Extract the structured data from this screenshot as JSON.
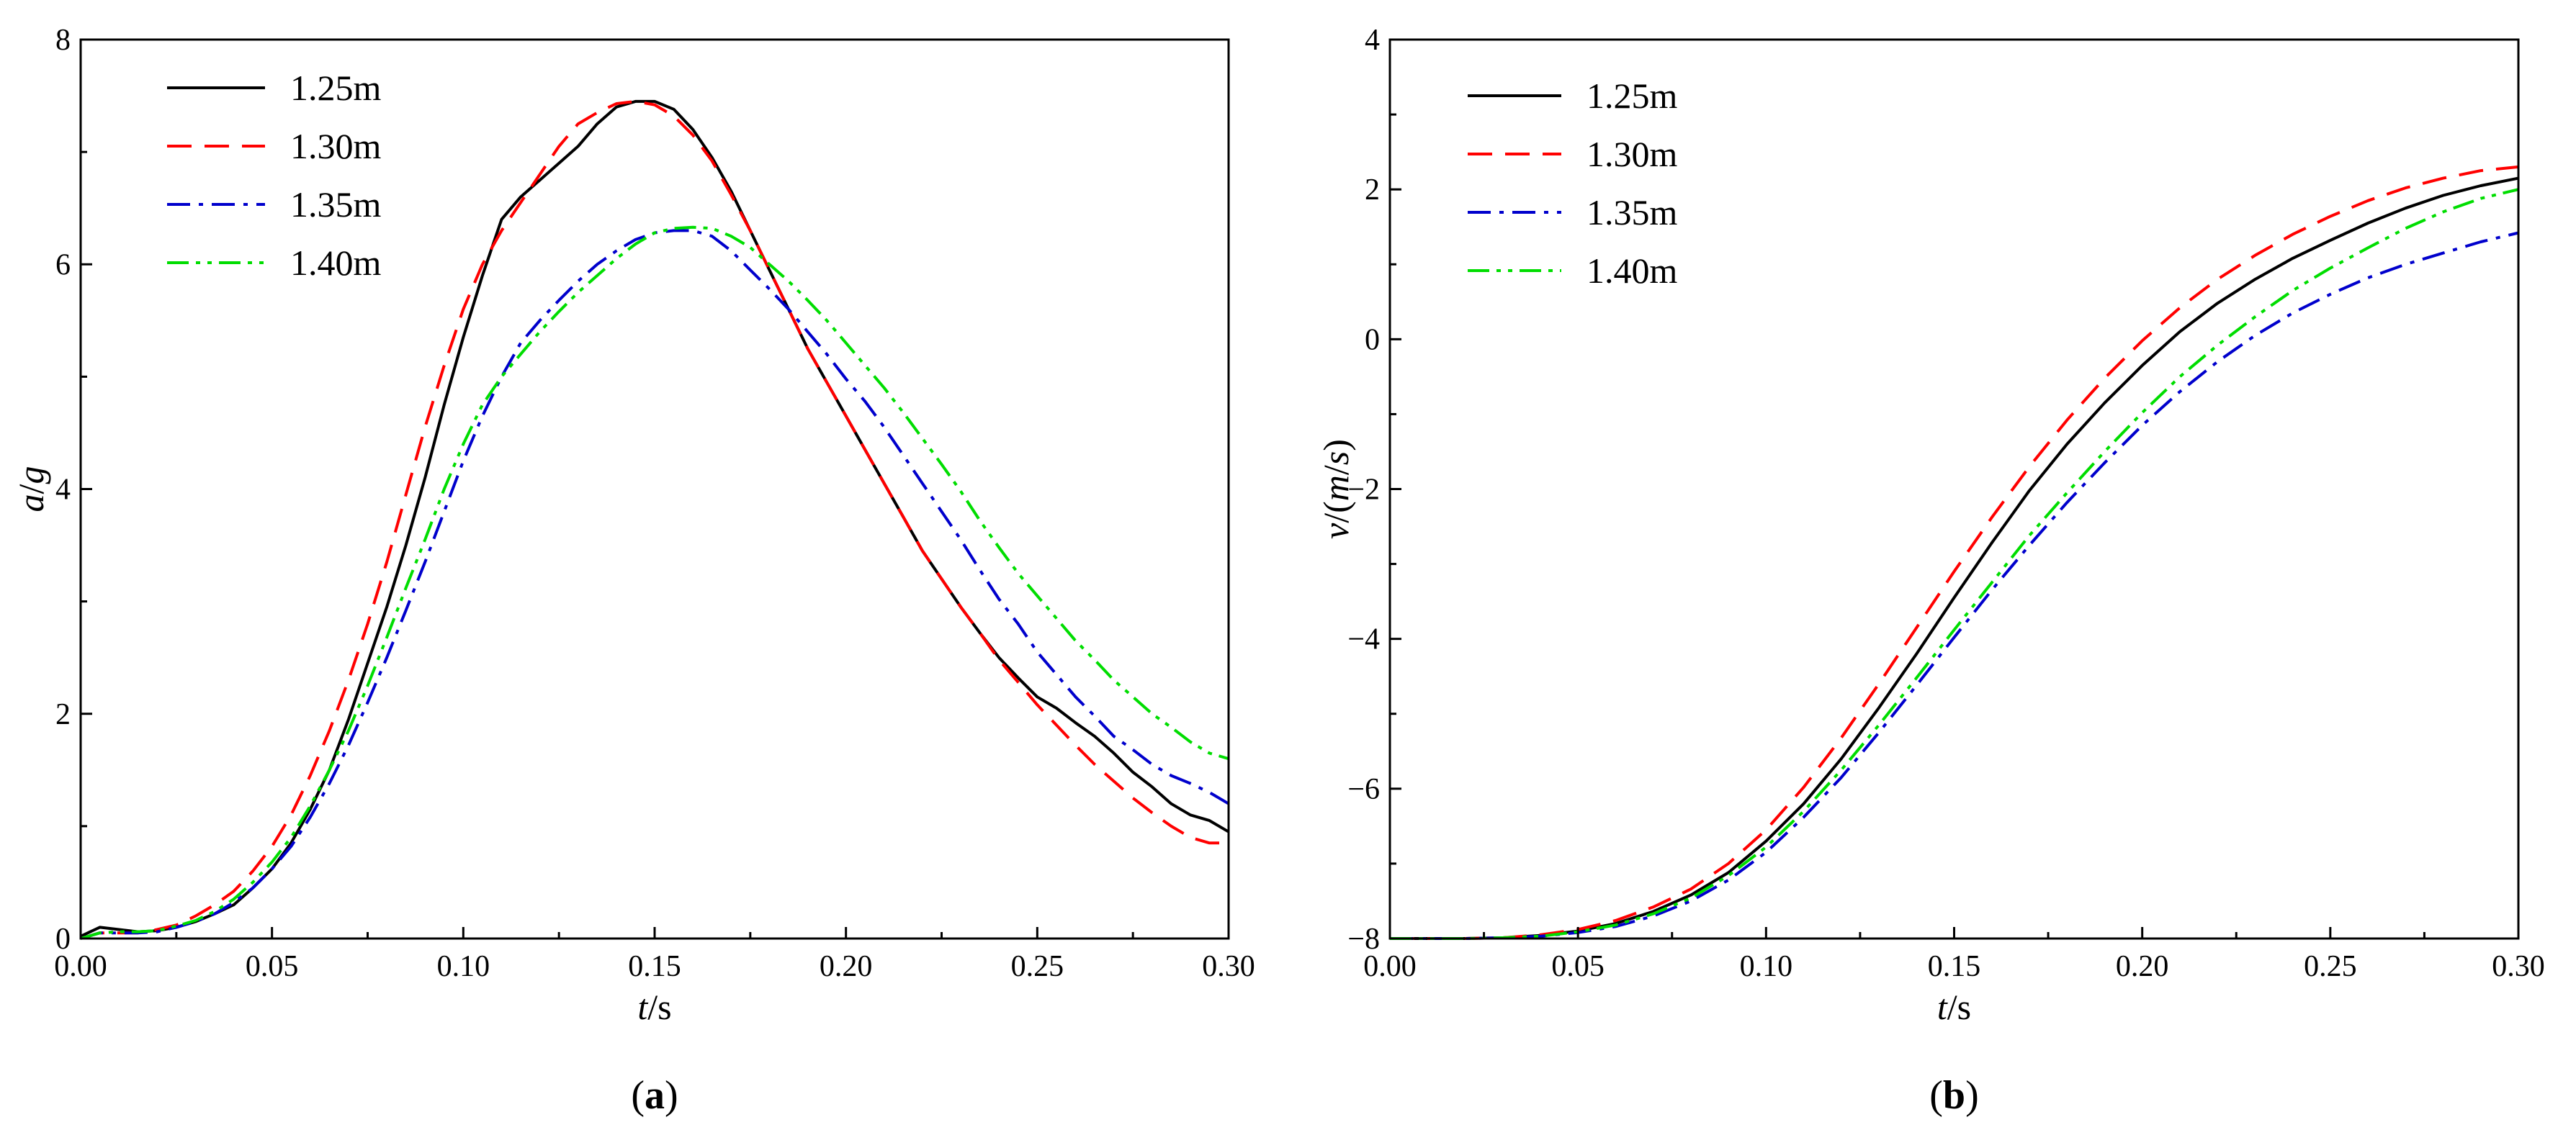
{
  "figure": {
    "panel_a_label": "a",
    "panel_b_label": "b"
  },
  "chart_data": [
    {
      "type": "line",
      "panel": "a",
      "title": "",
      "xlabel": "t/s",
      "ylabel": "a/g",
      "xlim": [
        0.0,
        0.3
      ],
      "ylim": [
        0,
        8
      ],
      "xticks": [
        0.0,
        0.05,
        0.1,
        0.15,
        0.2,
        0.25,
        0.3
      ],
      "xtick_labels": [
        "0.00",
        "0.05",
        "0.10",
        "0.15",
        "0.20",
        "0.25",
        "0.30"
      ],
      "yticks": [
        0,
        2,
        4,
        6,
        8
      ],
      "ytick_labels": [
        "0",
        "2",
        "4",
        "6",
        "8"
      ],
      "grid": false,
      "legend_position": "top-left",
      "x": [
        0.0,
        0.005,
        0.01,
        0.015,
        0.02,
        0.025,
        0.03,
        0.035,
        0.04,
        0.045,
        0.05,
        0.055,
        0.06,
        0.065,
        0.07,
        0.075,
        0.08,
        0.085,
        0.09,
        0.095,
        0.1,
        0.105,
        0.11,
        0.115,
        0.12,
        0.125,
        0.13,
        0.135,
        0.14,
        0.145,
        0.15,
        0.155,
        0.16,
        0.165,
        0.17,
        0.175,
        0.18,
        0.185,
        0.19,
        0.195,
        0.2,
        0.205,
        0.21,
        0.215,
        0.22,
        0.225,
        0.23,
        0.235,
        0.24,
        0.245,
        0.25,
        0.255,
        0.26,
        0.265,
        0.27,
        0.275,
        0.28,
        0.285,
        0.29,
        0.295,
        0.3
      ],
      "series": [
        {
          "name": "1.25m",
          "color": "#000000",
          "dash": "solid",
          "values": [
            0.02,
            0.1,
            0.08,
            0.06,
            0.07,
            0.1,
            0.15,
            0.22,
            0.3,
            0.45,
            0.62,
            0.85,
            1.15,
            1.5,
            1.95,
            2.45,
            2.95,
            3.5,
            4.1,
            4.75,
            5.35,
            5.9,
            6.4,
            6.6,
            6.75,
            6.9,
            7.05,
            7.25,
            7.4,
            7.45,
            7.45,
            7.38,
            7.2,
            6.95,
            6.65,
            6.3,
            5.95,
            5.6,
            5.25,
            4.95,
            4.65,
            4.35,
            4.05,
            3.75,
            3.45,
            3.2,
            2.95,
            2.72,
            2.5,
            2.32,
            2.15,
            2.05,
            1.92,
            1.8,
            1.65,
            1.48,
            1.35,
            1.2,
            1.1,
            1.05,
            0.95
          ]
        },
        {
          "name": "1.30m",
          "color": "#ff0000",
          "dash": "dashed",
          "values": [
            0.0,
            0.05,
            0.05,
            0.05,
            0.08,
            0.12,
            0.2,
            0.3,
            0.42,
            0.6,
            0.82,
            1.1,
            1.45,
            1.85,
            2.3,
            2.8,
            3.35,
            3.95,
            4.55,
            5.1,
            5.6,
            6.0,
            6.3,
            6.55,
            6.8,
            7.05,
            7.25,
            7.35,
            7.43,
            7.45,
            7.42,
            7.32,
            7.15,
            6.92,
            6.62,
            6.3,
            5.95,
            5.6,
            5.25,
            4.95,
            4.65,
            4.35,
            4.05,
            3.75,
            3.45,
            3.2,
            2.95,
            2.72,
            2.48,
            2.28,
            2.08,
            1.9,
            1.72,
            1.55,
            1.4,
            1.25,
            1.12,
            1.0,
            0.9,
            0.85,
            0.85
          ]
        },
        {
          "name": "1.35m",
          "color": "#0000cc",
          "dash": "dashdot",
          "values": [
            0.0,
            0.05,
            0.05,
            0.05,
            0.06,
            0.1,
            0.15,
            0.22,
            0.32,
            0.45,
            0.62,
            0.82,
            1.08,
            1.38,
            1.72,
            2.1,
            2.5,
            2.92,
            3.35,
            3.8,
            4.25,
            4.65,
            5.0,
            5.3,
            5.5,
            5.68,
            5.85,
            6.0,
            6.12,
            6.22,
            6.28,
            6.3,
            6.3,
            6.25,
            6.12,
            5.95,
            5.78,
            5.6,
            5.4,
            5.2,
            4.98,
            4.78,
            4.55,
            4.3,
            4.05,
            3.8,
            3.55,
            3.28,
            3.02,
            2.8,
            2.55,
            2.35,
            2.15,
            1.98,
            1.8,
            1.68,
            1.55,
            1.45,
            1.38,
            1.3,
            1.2
          ]
        },
        {
          "name": "1.40m",
          "color": "#00dd00",
          "dash": "dashdotdot",
          "values": [
            0.0,
            0.05,
            0.06,
            0.06,
            0.07,
            0.11,
            0.16,
            0.24,
            0.35,
            0.5,
            0.68,
            0.9,
            1.18,
            1.5,
            1.85,
            2.25,
            2.68,
            3.12,
            3.55,
            4.0,
            4.4,
            4.75,
            5.0,
            5.2,
            5.4,
            5.58,
            5.75,
            5.9,
            6.05,
            6.18,
            6.28,
            6.32,
            6.33,
            6.32,
            6.25,
            6.15,
            6.0,
            5.85,
            5.68,
            5.5,
            5.3,
            5.1,
            4.9,
            4.68,
            4.45,
            4.22,
            3.98,
            3.72,
            3.48,
            3.25,
            3.05,
            2.85,
            2.65,
            2.48,
            2.3,
            2.15,
            2.0,
            1.88,
            1.75,
            1.65,
            1.6
          ]
        }
      ]
    },
    {
      "type": "line",
      "panel": "b",
      "title": "",
      "xlabel": "t/s",
      "ylabel": "v/(m/s)",
      "xlim": [
        0.0,
        0.3
      ],
      "ylim": [
        -8,
        4
      ],
      "xticks": [
        0.0,
        0.05,
        0.1,
        0.15,
        0.2,
        0.25,
        0.3
      ],
      "xtick_labels": [
        "0.00",
        "0.05",
        "0.10",
        "0.15",
        "0.20",
        "0.25",
        "0.30"
      ],
      "yticks": [
        -8,
        -6,
        -4,
        -2,
        0,
        2,
        4
      ],
      "ytick_labels": [
        "−8",
        "−6",
        "−4",
        "−2",
        "0",
        "2",
        "4"
      ],
      "grid": false,
      "legend_position": "top-left",
      "x": [
        0.0,
        0.01,
        0.02,
        0.03,
        0.04,
        0.05,
        0.06,
        0.07,
        0.08,
        0.09,
        0.1,
        0.11,
        0.12,
        0.13,
        0.14,
        0.15,
        0.16,
        0.17,
        0.18,
        0.19,
        0.2,
        0.21,
        0.22,
        0.23,
        0.24,
        0.25,
        0.26,
        0.27,
        0.28,
        0.29,
        0.3
      ],
      "series": [
        {
          "name": "1.25m",
          "color": "#000000",
          "dash": "solid",
          "values": [
            -8.0,
            -8.0,
            -8.0,
            -7.99,
            -7.96,
            -7.9,
            -7.8,
            -7.64,
            -7.42,
            -7.12,
            -6.7,
            -6.2,
            -5.6,
            -4.92,
            -4.2,
            -3.45,
            -2.72,
            -2.02,
            -1.4,
            -0.85,
            -0.35,
            0.1,
            0.48,
            0.8,
            1.08,
            1.32,
            1.55,
            1.75,
            1.92,
            2.05,
            2.15
          ]
        },
        {
          "name": "1.30m",
          "color": "#ff0000",
          "dash": "dashed",
          "values": [
            -8.0,
            -8.0,
            -8.0,
            -7.99,
            -7.95,
            -7.88,
            -7.76,
            -7.58,
            -7.34,
            -7.0,
            -6.55,
            -5.98,
            -5.32,
            -4.6,
            -3.85,
            -3.1,
            -2.38,
            -1.7,
            -1.08,
            -0.52,
            -0.02,
            0.42,
            0.8,
            1.12,
            1.4,
            1.64,
            1.85,
            2.02,
            2.15,
            2.25,
            2.3
          ]
        },
        {
          "name": "1.35m",
          "color": "#0000cc",
          "dash": "dashdot",
          "values": [
            -8.0,
            -8.0,
            -8.0,
            -7.99,
            -7.97,
            -7.92,
            -7.84,
            -7.7,
            -7.5,
            -7.22,
            -6.85,
            -6.38,
            -5.85,
            -5.25,
            -4.62,
            -3.98,
            -3.35,
            -2.75,
            -2.18,
            -1.65,
            -1.15,
            -0.7,
            -0.3,
            0.05,
            0.35,
            0.6,
            0.82,
            1.0,
            1.15,
            1.3,
            1.42
          ]
        },
        {
          "name": "1.40m",
          "color": "#00dd00",
          "dash": "dashdotdot",
          "values": [
            -8.0,
            -8.0,
            -8.0,
            -7.99,
            -7.97,
            -7.91,
            -7.82,
            -7.67,
            -7.46,
            -7.16,
            -6.78,
            -6.3,
            -5.75,
            -5.15,
            -4.52,
            -3.88,
            -3.25,
            -2.62,
            -2.05,
            -1.5,
            -0.98,
            -0.5,
            -0.08,
            0.3,
            0.65,
            0.95,
            1.22,
            1.48,
            1.7,
            1.88,
            2.0
          ]
        }
      ]
    }
  ]
}
